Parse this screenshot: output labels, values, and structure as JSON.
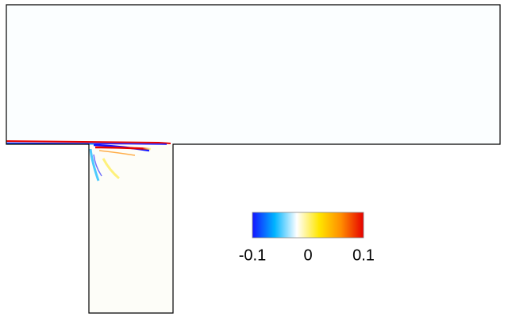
{
  "chart_data": {
    "type": "contour",
    "colormap": [
      "#1414ff",
      "#00b4ff",
      "#ffffff",
      "#ffe600",
      "#ff8c00",
      "#e60000"
    ],
    "clim": [
      -0.1,
      0.1
    ],
    "cticks": [
      -0.1,
      0,
      0.1
    ]
  }
}
